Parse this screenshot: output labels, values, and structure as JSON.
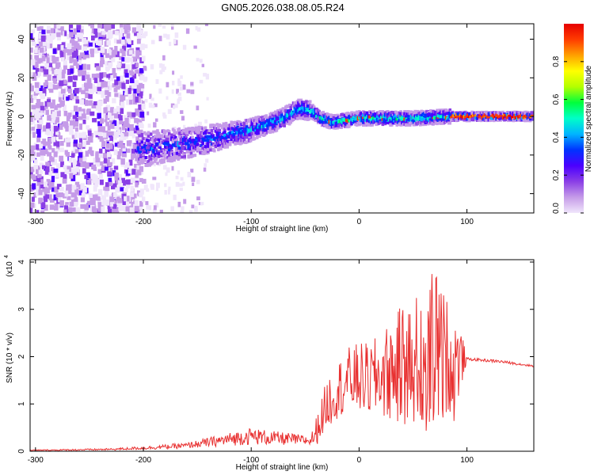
{
  "title": "GN05.2026.038.08.05.R24",
  "chart_data": [
    {
      "type": "heatmap",
      "xlabel": "Height of straight line (km)",
      "ylabel": "Frequency (Hz)",
      "xlim": [
        -305,
        162
      ],
      "ylim": [
        -50,
        48
      ],
      "xticks": [
        -300,
        -200,
        -100,
        0,
        100
      ],
      "yticks": [
        -40,
        -20,
        0,
        20,
        40
      ],
      "colorbar": {
        "label": "Normalized spectral amplitude",
        "range": [
          0.0,
          1.0
        ],
        "ticks": [
          0.0,
          0.2,
          0.4,
          0.6,
          0.8
        ],
        "tick_labels": [
          "0.0",
          "0.2",
          "0.4",
          "0.6",
          "0.8"
        ],
        "colors": [
          "#f0e6fb",
          "#c59be8",
          "#8a3ee6",
          "#4b00ff",
          "#0033ff",
          "#00b4ff",
          "#00ffc8",
          "#00ff3c",
          "#b4ff00",
          "#ffff00",
          "#ffa000",
          "#ff3c00",
          "#e60000"
        ]
      },
      "ridge": {
        "x": [
          -200,
          -150,
          -100,
          -75,
          -55,
          -45,
          -35,
          -25,
          0,
          50,
          85,
          162
        ],
        "y": [
          -17,
          -13,
          -7,
          -2,
          4,
          3,
          -1,
          -3,
          -1,
          -1,
          0,
          0
        ]
      },
      "grid": false
    },
    {
      "type": "line",
      "xlabel": "Height of straight line (km)",
      "ylabel": "SNR (10 * v/v)",
      "multiplier": "(x10",
      "multiplier_exp": "4",
      "xlim": [
        -305,
        162
      ],
      "ylim": [
        0,
        4.05
      ],
      "xticks": [
        -300,
        -200,
        -100,
        0,
        100
      ],
      "yticks": [
        0,
        1,
        2,
        3,
        4
      ],
      "series": [
        {
          "color": "#e83030",
          "envelope_x": [
            -305,
            -230,
            -190,
            -160,
            -130,
            -100,
            -80,
            -60,
            -45,
            -40,
            -35,
            -30,
            -20,
            -10,
            0,
            10,
            20,
            30,
            40,
            50,
            60,
            70,
            80,
            92,
            100,
            130,
            162
          ],
          "envelope_y": [
            0.02,
            0.04,
            0.08,
            0.12,
            0.22,
            0.32,
            0.28,
            0.25,
            0.22,
            0.4,
            0.7,
            1.0,
            1.3,
            1.5,
            1.55,
            1.5,
            1.6,
            1.7,
            1.8,
            1.9,
            2.0,
            2.05,
            2.0,
            1.95,
            1.95,
            1.9,
            1.8
          ],
          "noise_amp": [
            0.01,
            0.02,
            0.04,
            0.06,
            0.12,
            0.18,
            0.15,
            0.12,
            0.1,
            0.3,
            0.4,
            0.55,
            0.6,
            0.7,
            0.75,
            0.8,
            0.9,
            1.1,
            1.3,
            1.3,
            1.6,
            1.8,
            1.3,
            0.9,
            0.03,
            0.03,
            0.02
          ]
        }
      ],
      "grid": false
    }
  ]
}
